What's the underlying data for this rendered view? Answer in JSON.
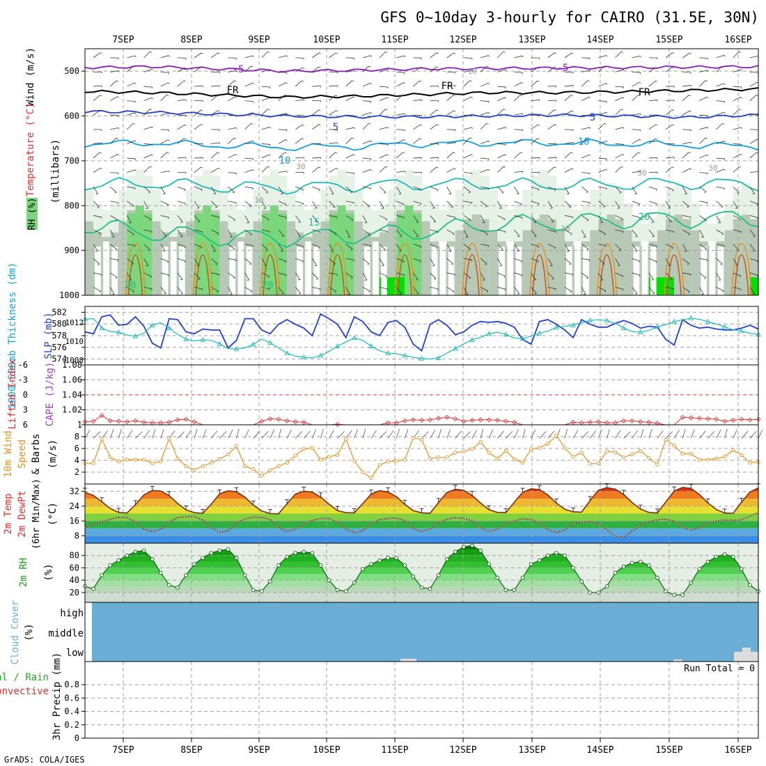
{
  "title": "GFS 0~10day 3-hourly for CAIRO (31.5E, 30N)",
  "footer": "GrADS: COLA/IGES",
  "colors": {
    "purple": "#8a1fb8",
    "black": "#000000",
    "blue": "#2040d0",
    "cyan": "#10a0e0",
    "teal": "#20b8b8",
    "green": "#20c080",
    "orange": "#e89020",
    "red": "#e03030",
    "cloud": "#6aaed6",
    "rh_light": "#e6f2e6",
    "rh_mid": "#7cd67c",
    "rh_bright": "#00e000",
    "grid": "#a0a0a0"
  },
  "chart_data": [
    {
      "type": "line",
      "panel": "upper_air",
      "ylabel": "(millibars)",
      "labels": [
        "Wind (m/s)",
        "Temperature (°C)",
        "RH (%)"
      ],
      "y_ticks": [
        "500",
        "600",
        "700",
        "800",
        "900",
        "1000"
      ],
      "ylim": [
        1000,
        450
      ],
      "dates": [
        "7SEP",
        "8SEP",
        "9SEP",
        "10SEP",
        "11SEP",
        "12SEP",
        "13SEP",
        "14SEP",
        "15SEP",
        "16SEP"
      ],
      "isotherms": [
        {
          "name": "-5",
          "color": "purple",
          "level": [
            492,
            490,
            495,
            500,
            498,
            495,
            494,
            493,
            492,
            491,
            490
          ]
        },
        {
          "name": "FR",
          "color": "black",
          "level": [
            545,
            548,
            553,
            558,
            556,
            552,
            548,
            548,
            546,
            543,
            540
          ]
        },
        {
          "name": "5",
          "color": "blue",
          "level": [
            590,
            592,
            596,
            600,
            602,
            602,
            600,
            598,
            600,
            603,
            598
          ]
        },
        {
          "name": "10",
          "color": "cyan",
          "level": [
            663,
            660,
            666,
            670,
            668,
            662,
            660,
            660,
            662,
            665,
            668
          ]
        },
        {
          "name": "15",
          "color": "teal",
          "level": [
            755,
            750,
            758,
            760,
            755,
            752,
            752,
            754,
            752,
            750,
            752
          ]
        },
        {
          "name": "20",
          "color": "green",
          "level": [
            845,
            860,
            870,
            872,
            866,
            858,
            842,
            838,
            832,
            830,
            828
          ]
        }
      ],
      "contour_labels": [
        "-5",
        "-5",
        "FR",
        "FR",
        "FR",
        "5",
        "5",
        "10",
        "10",
        "15",
        "20",
        "20",
        "20",
        "10",
        "30",
        "30",
        "30",
        "30",
        "10",
        "30"
      ]
    },
    {
      "type": "line",
      "panel": "thickness_slp",
      "ylabel_left": "1000-500mb Thickness (dm)",
      "ylabel_right": "SLP (mb)",
      "y_ticks_left": [
        "582",
        "580",
        "578",
        "576",
        "574"
      ],
      "y_ticks_right": [
        "1012",
        "1010",
        "1008"
      ],
      "series": [
        {
          "name": "SLP (mb)",
          "color": "blue",
          "values": [
            1011.0,
            1010.8,
            1012.6,
            1012.8,
            1011.7,
            1011.8,
            1012.6,
            1011.6,
            1009.8,
            1009.3,
            1012.4,
            1012.3,
            1011.0,
            1010.8,
            1011.3,
            1011.2,
            1011.2,
            1009.3,
            1010.1,
            1012.4,
            1012.4,
            1011.2,
            1010.8,
            1011.8,
            1012.3,
            1011.8,
            1011.4,
            1010.6,
            1012.9,
            1012.4,
            1011.8,
            1010.4,
            1012.6,
            1012.1,
            1011.0,
            1010.6,
            1012.0,
            1012.2,
            1011.5,
            1009.7,
            1009.0,
            1011.8,
            1012.3,
            1011.7,
            1010.7,
            1011.0,
            1011.7,
            1012.1,
            1012.0,
            1012.1,
            1011.9,
            1011.5,
            1010.2,
            1009.7,
            1012.1,
            1012.3,
            1011.8,
            1011.2,
            1010.4,
            1012.3,
            1011.8,
            1011.5,
            1011.5,
            1011.9,
            1012.2,
            1011.9,
            1011.4,
            1011.6,
            1011.5,
            1010.2,
            1009.6,
            1012.3,
            1011.7,
            1011.4,
            1011.5,
            1011.3,
            1011.2,
            1011.2,
            1011.4,
            1011.7,
            1011.3
          ]
        },
        {
          "name": "Thickness (dm)",
          "color": "teal",
          "values": [
            580.8,
            580.9,
            579.3,
            578.7,
            578.6,
            578.1,
            577.9,
            578.4,
            579.8,
            580.2,
            579.3,
            578.2,
            577.4,
            577.1,
            577.3,
            577.2,
            576.6,
            575.8,
            575.7,
            575.9,
            576.5,
            577.4,
            576.8,
            575.9,
            575.0,
            574.5,
            574.3,
            574.2,
            574.6,
            575.3,
            576.2,
            576.9,
            577.6,
            577.2,
            576.2,
            575.4,
            575.0,
            574.9,
            574.6,
            574.3,
            574.1,
            574.0,
            574.2,
            575.0,
            575.8,
            576.6,
            577.3,
            577.7,
            578.3,
            578.6,
            578.2,
            577.6,
            577.5,
            577.9,
            578.4,
            578.8,
            579.4,
            579.6,
            579.8,
            580.2,
            580.6,
            580.7,
            580.6,
            580.1,
            579.3,
            578.7,
            578.6,
            578.9,
            579.5,
            579.9,
            580.4,
            580.7,
            581.0,
            580.8,
            580.4,
            580.0,
            579.5,
            579.0,
            578.8,
            578.4,
            578.2
          ]
        }
      ]
    },
    {
      "type": "line",
      "panel": "lifted_cape",
      "ylabel_left": "Lifted Index",
      "ylabel_right": "CAPE (J/kg)",
      "y_ticks_left": [
        "-6",
        "-3",
        "0",
        "3",
        "6"
      ],
      "y_ticks_right": [
        "1.08",
        "1.06",
        "1.04",
        "1.02",
        "1"
      ],
      "series": [
        {
          "name": "Lifted Index",
          "color": "red",
          "values": [
            5.4,
            5.3,
            4.1,
            5.2,
            5.3,
            5.4,
            5.2,
            5.5,
            5.6,
            5.6,
            5.5,
            5.0,
            4.9,
            5.4,
            6.0,
            6.0,
            6.0,
            6.0,
            6.0,
            6.0,
            6.0,
            5.3,
            4.8,
            4.9,
            5.2,
            5.4,
            5.5,
            6.0,
            6.0,
            6.0,
            5.9,
            6.0,
            6.0,
            6.0,
            6.0,
            6.0,
            5.6,
            5.6,
            5.2,
            5.0,
            5.1,
            5.0,
            4.7,
            4.5,
            4.8,
            5.3,
            5.1,
            5.0,
            5.0,
            5.1,
            5.3,
            5.5,
            6.0,
            6.0,
            6.0,
            6.0,
            6.0,
            6.0,
            5.5,
            5.6,
            5.5,
            5.4,
            5.6,
            5.6,
            5.2,
            5.2,
            5.4,
            5.5,
            5.7,
            6.0,
            6.0,
            4.5,
            4.6,
            4.7,
            4.8,
            4.9,
            5.3,
            5.1,
            4.9,
            5.0,
            4.9
          ]
        }
      ]
    },
    {
      "type": "line",
      "panel": "wind10m",
      "ylabel": "10m Wind Speed & Barbs (m/s)",
      "y_ticks": [
        "2",
        "4",
        "6",
        "8"
      ],
      "series": [
        {
          "name": "10m Wind Speed",
          "color": "orange",
          "values": [
            3.5,
            3.5,
            7.6,
            4.5,
            3.8,
            4.1,
            4.1,
            4.1,
            3.5,
            3.8,
            7.7,
            4.3,
            3.0,
            2.4,
            3.0,
            3.6,
            4.2,
            5.0,
            6.4,
            3.0,
            2.5,
            1.4,
            2.3,
            3.0,
            3.6,
            4.8,
            5.9,
            6.1,
            4.1,
            4.6,
            4.9,
            7.6,
            3.9,
            2.0,
            1.0,
            3.2,
            3.8,
            3.9,
            4.1,
            7.8,
            7.5,
            4.3,
            4.5,
            4.5,
            5.3,
            5.5,
            5.9,
            7.1,
            5.3,
            4.3,
            5.6,
            4.2,
            3.6,
            5.9,
            6.1,
            6.8,
            8.2,
            6.1,
            4.6,
            5.3,
            3.4,
            3.5,
            5.5,
            5.4,
            4.5,
            5.0,
            5.6,
            4.4,
            3.3,
            7.5,
            6.5,
            5.1,
            5.1,
            4.1,
            4.1,
            4.3,
            4.6,
            5.7,
            4.9,
            3.6,
            3.7
          ]
        }
      ]
    },
    {
      "type": "area",
      "panel": "temp2m",
      "ylabel": "2m Temp 2m DewPt (6hr Min/Max) (°C)",
      "y_ticks": [
        "8",
        "16",
        "24",
        "32"
      ],
      "series": [
        {
          "name": "2m Temp",
          "color": "black",
          "values": [
            31.5,
            29.8,
            26.4,
            22.8,
            20.6,
            20.3,
            24.8,
            30.1,
            32.5,
            32.2,
            29.7,
            25.5,
            22.0,
            20.5,
            20.1,
            25.1,
            30.6,
            32.3,
            31.8,
            28.9,
            24.6,
            21.4,
            20.0,
            19.9,
            25.3,
            30.5,
            32.1,
            31.6,
            29.0,
            25.1,
            21.6,
            20.5,
            20.4,
            25.4,
            30.5,
            32.4,
            31.7,
            29.2,
            25.0,
            21.6,
            20.4,
            20.2,
            26.0,
            31.4,
            33.1,
            32.6,
            29.8,
            25.7,
            22.1,
            20.6,
            20.5,
            26.1,
            31.5,
            33.4,
            33.0,
            30.0,
            25.7,
            22.3,
            20.9,
            20.8,
            27.0,
            32.6,
            34.0,
            33.2,
            30.4,
            26.0,
            22.4,
            20.6,
            20.3,
            26.2,
            32.2,
            34.1,
            33.6,
            30.3,
            25.8,
            22.2,
            20.3,
            20.1,
            26.1,
            31.6,
            33.9
          ]
        },
        {
          "name": "2m DewPt",
          "color": "brown",
          "values": [
            12.5,
            14.0,
            15.6,
            16.8,
            18.0,
            17.8,
            15.4,
            11.6,
            10.2,
            11.5,
            15.5,
            17.8,
            18.4,
            18.5,
            16.4,
            12.4,
            9.8,
            10.7,
            14.8,
            17.1,
            18.2,
            18.0,
            16.8,
            12.5,
            10.4,
            11.6,
            14.6,
            16.3,
            17.4,
            17.3,
            15.4,
            11.8,
            9.6,
            10.8,
            14.6,
            16.7,
            17.4,
            17.5,
            16.2,
            11.8,
            10.4,
            11.7,
            15.0,
            17.0,
            17.7,
            17.4,
            16.3,
            12.2,
            10.3,
            11.6,
            14.6,
            16.0,
            17.2,
            16.7,
            14.9,
            11.3,
            9.8,
            11.2,
            14.6,
            15.3,
            15.7,
            14.3,
            11.3,
            7.5,
            7.3,
            10.5,
            13.7,
            15.6,
            16.6,
            16.9,
            15.9,
            12.7,
            10.9,
            12.3,
            15.0,
            15.9,
            16.5,
            16.2,
            16.7,
            18.6,
            20.5
          ]
        }
      ]
    },
    {
      "type": "area",
      "panel": "rh2m",
      "ylabel": "2m RH (%)",
      "y_ticks": [
        "20",
        "40",
        "60",
        "80"
      ],
      "series": [
        {
          "name": "2m RH",
          "color": "green",
          "values": [
            30,
            26,
            48,
            64,
            72,
            80,
            86,
            88,
            74,
            52,
            32,
            28,
            48,
            66,
            76,
            84,
            88,
            90,
            76,
            48,
            24,
            22,
            38,
            64,
            78,
            84,
            86,
            84,
            64,
            40,
            24,
            22,
            36,
            58,
            66,
            72,
            76,
            76,
            64,
            46,
            28,
            26,
            48,
            74,
            86,
            94,
            96,
            88,
            66,
            44,
            24,
            24,
            44,
            66,
            72,
            80,
            84,
            80,
            60,
            38,
            20,
            20,
            30,
            52,
            62,
            68,
            70,
            64,
            44,
            22,
            16,
            16,
            36,
            58,
            70,
            78,
            82,
            78,
            58,
            32,
            22
          ]
        }
      ]
    },
    {
      "type": "bar",
      "panel": "cloud",
      "ylabel": "Cloud Cover (%)",
      "y_ticks": [
        "high",
        "middle",
        "low"
      ],
      "low_cloud_blips": [
        "11SEP",
        "15SEP",
        "16SEP"
      ]
    },
    {
      "type": "bar",
      "panel": "precip",
      "ylabel": "3hr Precip (mm)",
      "legend": [
        "Total / Rain",
        "Convective"
      ],
      "y_ticks": [
        "0",
        "0.2",
        "0.4",
        "0.6",
        "0.8"
      ],
      "run_total_label": "Run Total = 0",
      "values": []
    }
  ]
}
